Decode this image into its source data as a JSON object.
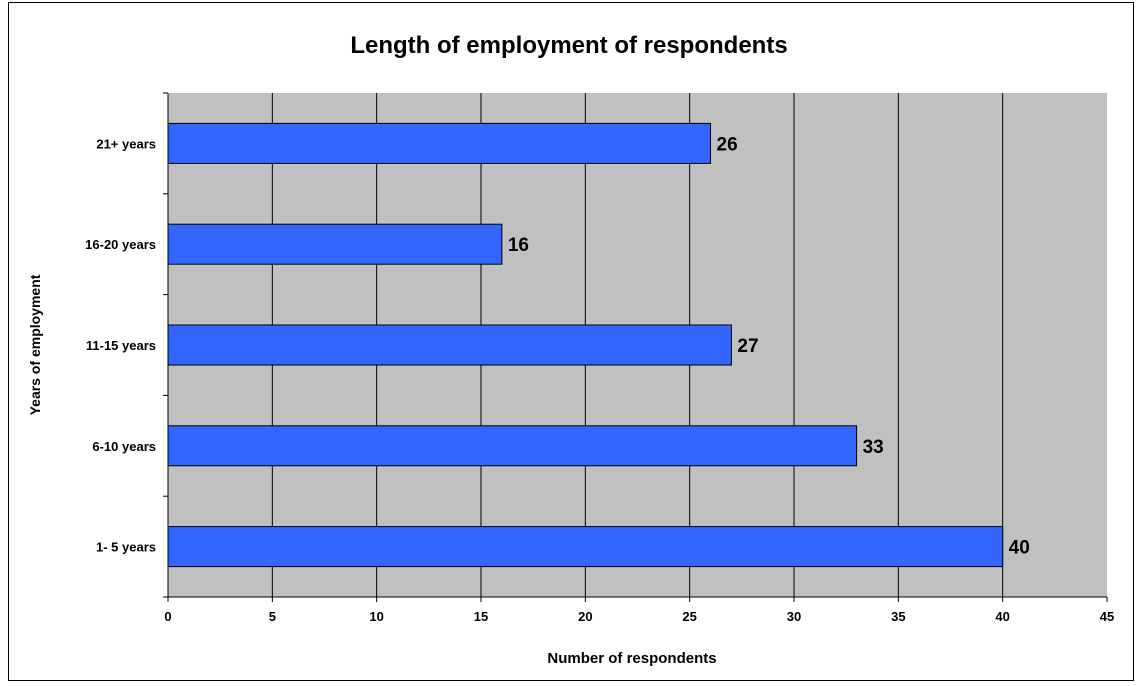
{
  "chart_data": {
    "type": "bar",
    "orientation": "horizontal",
    "title": "Length of employment of respondents",
    "xlabel": "Number of respondents",
    "ylabel": "Years of employment",
    "categories": [
      "21+ years",
      "16-20 years",
      "11-15 years",
      "6-10 years",
      "1- 5 years"
    ],
    "values": [
      26,
      16,
      27,
      33,
      40
    ],
    "data_labels": [
      "26",
      "16",
      "27",
      "33",
      "40"
    ],
    "xlim": [
      0,
      45
    ],
    "xticks": [
      0,
      5,
      10,
      15,
      20,
      25,
      30,
      35,
      40,
      45
    ],
    "grid": true,
    "legend": "none",
    "colors": {
      "bar": "#3366ff",
      "plot_background": "#c0c0c0",
      "gridline": "#000000"
    }
  }
}
